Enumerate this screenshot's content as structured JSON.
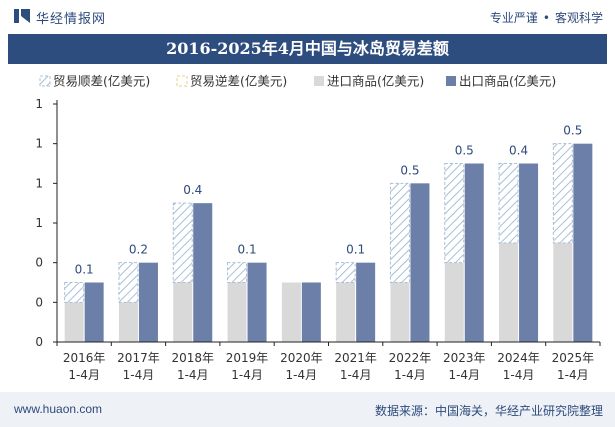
{
  "header": {
    "brand": "华经情报网",
    "tagline_left": "专业严谨",
    "tagline_right": "客观科学"
  },
  "footer": {
    "url": "www.huaon.com",
    "source_label": "数据来源：",
    "source_text": "中国海关，华经产业研究院整理"
  },
  "colors": {
    "title_bg": "#2e4d7f",
    "import": "#d9d9d9",
    "export": "#6b7fa8",
    "hatch": "#a9bfd6",
    "value_label": "#2d4a7c"
  },
  "chart_data": {
    "type": "bar",
    "title": "2016-2025年4月中国与冰岛贸易差额",
    "xlabel": "",
    "ylabel": "",
    "categories": [
      "2016年\n1-4月",
      "2017年\n1-4月",
      "2018年\n1-4月",
      "2019年\n1-4月",
      "2020年\n1-4月",
      "2021年\n1-4月",
      "2022年\n1-4月",
      "2023年\n1-4月",
      "2024年\n1-4月",
      "2025年\n1-4月"
    ],
    "y_tick_labels": [
      "0",
      "0",
      "0",
      "1",
      "1",
      "1",
      "1"
    ],
    "ylim": [
      0,
      1.2
    ],
    "grid": false,
    "legend_position": "top",
    "series": [
      {
        "name": "贸易顺差(亿美元)",
        "values": [
          0.1,
          0.2,
          0.4,
          0.1,
          0.0,
          0.1,
          0.5,
          0.5,
          0.4,
          0.5
        ]
      },
      {
        "name": "贸易逆差(亿美元)",
        "values": [
          0,
          0,
          0,
          0,
          0,
          0,
          0,
          0,
          0,
          0
        ]
      },
      {
        "name": "进口商品(亿美元)",
        "values": [
          0.2,
          0.2,
          0.3,
          0.3,
          0.3,
          0.3,
          0.3,
          0.4,
          0.5,
          0.5
        ]
      },
      {
        "name": "出口商品(亿美元)",
        "values": [
          0.3,
          0.4,
          0.7,
          0.4,
          0.3,
          0.4,
          0.8,
          0.9,
          0.9,
          1.0
        ]
      }
    ],
    "data_labels": [
      "0.1",
      "0.2",
      "0.4",
      "0.1",
      "",
      "0.1",
      "0.5",
      "0.5",
      "0.4",
      "0.5"
    ]
  }
}
